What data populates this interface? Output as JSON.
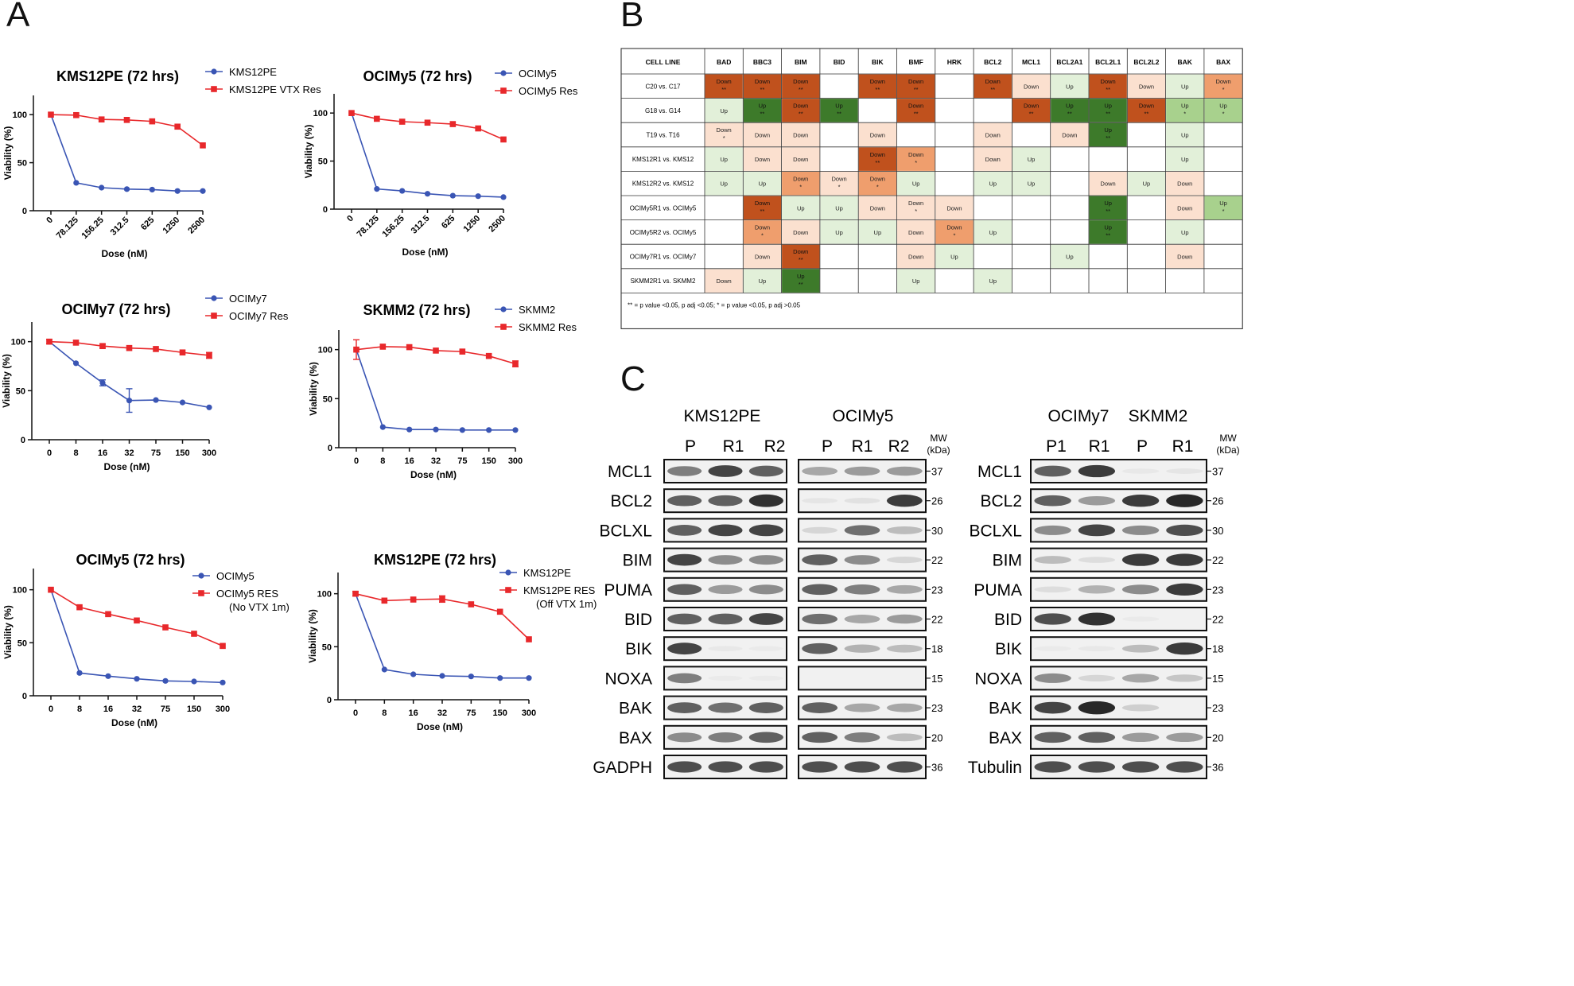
{
  "panels": {
    "a": "A",
    "b": "B",
    "c": "C"
  },
  "colors": {
    "sensitive": "#3a55b4",
    "resistant": "#e8282b",
    "dark_down": "#c0511d",
    "mid_down": "#ef9e6d",
    "light_down": "#fbe0cf",
    "dark_up": "#3d7a2a",
    "mid_up": "#a8d18d",
    "light_up": "#e2f0d9"
  },
  "chart_data": [
    {
      "type": "line",
      "title": "KMS12PE (72 hrs)",
      "xlabel": "Dose (nM)",
      "ylabel": "Viability (%)",
      "ylim": [
        0,
        120
      ],
      "yticks": [
        "0",
        "50",
        "100"
      ],
      "categories": [
        "0",
        "78.125",
        "156.25",
        "312.5",
        "625",
        "1250",
        "2500"
      ],
      "rotate_ticks": true,
      "series": [
        {
          "name": "KMS12PE",
          "values": [
            100,
            29,
            24,
            22.5,
            22,
            20.5,
            20.5
          ]
        },
        {
          "name": "KMS12PE VTX Res",
          "values": [
            100,
            99.5,
            95,
            94.5,
            93,
            87.5,
            68
          ]
        }
      ]
    },
    {
      "type": "line",
      "title": "OCIMy5 (72 hrs)",
      "xlabel": "Dose (nM)",
      "ylabel": "Viability (%)",
      "ylim": [
        0,
        120
      ],
      "yticks": [
        "0",
        "50",
        "100"
      ],
      "categories": [
        "0",
        "78.125",
        "156.25",
        "312.5",
        "625",
        "1250",
        "2500"
      ],
      "rotate_ticks": true,
      "series": [
        {
          "name": "OCIMy5",
          "values": [
            100,
            21,
            19,
            16,
            14,
            13.5,
            12.5
          ]
        },
        {
          "name": "OCIMy5 Res",
          "values": [
            100,
            94,
            91,
            90,
            88.5,
            84,
            72.5
          ]
        }
      ]
    },
    {
      "type": "line",
      "title": "OCIMy7 (72 hrs)",
      "xlabel": "Dose (nM)",
      "ylabel": "Viability (%)",
      "ylim": [
        0,
        120
      ],
      "yticks": [
        "0",
        "50",
        "100"
      ],
      "categories": [
        "0",
        "8",
        "16",
        "32",
        "75",
        "150",
        "300"
      ],
      "rotate_ticks": false,
      "series": [
        {
          "name": "OCIMy7",
          "values": [
            100,
            78,
            58,
            40,
            40.5,
            38,
            33
          ],
          "errors": [
            0,
            0,
            3,
            12,
            0,
            0,
            0
          ]
        },
        {
          "name": "OCIMy7 Res",
          "values": [
            100,
            99,
            95.5,
            93.5,
            92.5,
            89,
            86
          ],
          "errors": [
            2,
            0,
            2,
            0,
            0,
            0,
            3
          ]
        }
      ]
    },
    {
      "type": "line",
      "title": "SKMM2 (72 hrs)",
      "xlabel": "Dose (nM)",
      "ylabel": "Viability (%)",
      "ylim": [
        0,
        120
      ],
      "yticks": [
        "0",
        "50",
        "100"
      ],
      "categories": [
        "0",
        "8",
        "16",
        "32",
        "75",
        "150",
        "300"
      ],
      "rotate_ticks": false,
      "series": [
        {
          "name": "SKMM2",
          "values": [
            100,
            21,
            18.5,
            18.5,
            18,
            18,
            18
          ]
        },
        {
          "name": "SKMM2 Res",
          "values": [
            100,
            103,
            102.5,
            99,
            98,
            93.5,
            85.5
          ],
          "errors": [
            10,
            0,
            0,
            0,
            0,
            0,
            3
          ]
        }
      ]
    },
    {
      "type": "line",
      "title": "OCIMy5 (72 hrs)",
      "xlabel": "Dose (nM)",
      "ylabel": "Viability (%)",
      "ylim": [
        0,
        120
      ],
      "yticks": [
        "0",
        "50",
        "100"
      ],
      "categories": [
        "0",
        "8",
        "16",
        "32",
        "75",
        "150",
        "300"
      ],
      "rotate_ticks": false,
      "series": [
        {
          "name": "OCIMy5",
          "values": [
            100,
            21.5,
            18.5,
            16,
            14,
            13.5,
            12.5
          ]
        },
        {
          "name": "OCIMy5 RES",
          "name2": "(No VTX 1m)",
          "values": [
            100,
            83.5,
            77,
            71,
            64.5,
            58.5,
            47
          ]
        }
      ]
    },
    {
      "type": "line",
      "title": "KMS12PE (72 hrs)",
      "xlabel": "Dose (nM)",
      "ylabel": "Viability (%)",
      "ylim": [
        0,
        120
      ],
      "yticks": [
        "0",
        "50",
        "100"
      ],
      "categories": [
        "0",
        "8",
        "16",
        "32",
        "75",
        "150",
        "300"
      ],
      "rotate_ticks": false,
      "series": [
        {
          "name": "KMS12PE",
          "values": [
            100,
            28.5,
            24,
            22.5,
            22,
            20.5,
            20.5
          ]
        },
        {
          "name": "KMS12PE RES",
          "name2": "(Off VTX 1m)",
          "values": [
            100,
            93.5,
            94.5,
            95,
            90,
            83,
            57
          ],
          "errors": [
            2,
            0,
            0,
            3,
            0,
            0,
            0
          ]
        }
      ]
    }
  ],
  "table": {
    "columns": [
      "CELL LINE",
      "BAD",
      "BBC3",
      "BIM",
      "BID",
      "BIK",
      "BMF",
      "HRK",
      "BCL2",
      "MCL1",
      "BCL2A1",
      "BCL2L1",
      "BCL2L2",
      "BAK",
      "BAX"
    ],
    "rows": [
      {
        "label": "C20 vs. C17",
        "cells": [
          [
            "Down",
            "**",
            "dd"
          ],
          [
            "Down",
            "**",
            "dd"
          ],
          [
            "Down",
            "**",
            "dd"
          ],
          null,
          [
            "Down",
            "**",
            "dd"
          ],
          [
            "Down",
            "**",
            "dd"
          ],
          null,
          [
            "Down",
            "**",
            "dd"
          ],
          [
            "Down",
            "",
            "ld"
          ],
          [
            "Up",
            "",
            "lu"
          ],
          [
            "Down",
            "**",
            "dd"
          ],
          [
            "Down",
            "",
            "ld"
          ],
          [
            "Up",
            "",
            "lu"
          ],
          [
            "Down",
            "*",
            "md"
          ]
        ]
      },
      {
        "label": "G18 vs. G14",
        "cells": [
          [
            "Up",
            "",
            "lu"
          ],
          [
            "Up",
            "**",
            "du"
          ],
          [
            "Down",
            "**",
            "dd"
          ],
          [
            "Up",
            "**",
            "du"
          ],
          null,
          [
            "Down",
            "**",
            "dd"
          ],
          null,
          null,
          [
            "Down",
            "**",
            "dd"
          ],
          [
            "Up",
            "**",
            "du"
          ],
          [
            "Up",
            "**",
            "du"
          ],
          [
            "Down",
            "**",
            "dd"
          ],
          [
            "Up",
            "*",
            "mu"
          ],
          [
            "Up",
            "*",
            "mu"
          ]
        ]
      },
      {
        "label": "T19 vs. T16",
        "cells": [
          [
            "Down",
            "*",
            "ld"
          ],
          [
            "Down",
            "",
            "ld"
          ],
          [
            "Down",
            "",
            "ld"
          ],
          null,
          [
            "Down",
            "",
            "ld"
          ],
          null,
          null,
          [
            "Down",
            "",
            "ld"
          ],
          null,
          [
            "Down",
            "",
            "ld"
          ],
          [
            "Up",
            "**",
            "du"
          ],
          null,
          [
            "Up",
            "",
            "lu"
          ],
          null
        ]
      },
      {
        "label": "KMS12R1 vs. KMS12",
        "cells": [
          [
            "Up",
            "",
            "lu"
          ],
          [
            "Down",
            "",
            "ld"
          ],
          [
            "Down",
            "",
            "ld"
          ],
          null,
          [
            "Down",
            "**",
            "dd"
          ],
          [
            "Down",
            "*",
            "md"
          ],
          null,
          [
            "Down",
            "",
            "ld"
          ],
          [
            "Up",
            "",
            "lu"
          ],
          null,
          null,
          null,
          [
            "Up",
            "",
            "lu"
          ],
          null
        ]
      },
      {
        "label": "KMS12R2 vs. KMS12",
        "cells": [
          [
            "Up",
            "",
            "lu"
          ],
          [
            "Up",
            "",
            "lu"
          ],
          [
            "Down",
            "*",
            "md"
          ],
          [
            "Down",
            "*",
            "ld"
          ],
          [
            "Down",
            "*",
            "md"
          ],
          [
            "Up",
            "",
            "lu"
          ],
          null,
          [
            "Up",
            "",
            "lu"
          ],
          [
            "Up",
            "",
            "lu"
          ],
          null,
          [
            "Down",
            "",
            "ld"
          ],
          [
            "Up",
            "",
            "lu"
          ],
          [
            "Down",
            "",
            "ld"
          ],
          null
        ]
      },
      {
        "label": "OCIMy5R1 vs. OCIMy5",
        "cells": [
          null,
          [
            "Down",
            "**",
            "dd"
          ],
          [
            "Up",
            "",
            "lu"
          ],
          [
            "Up",
            "",
            "lu"
          ],
          [
            "Down",
            "",
            "ld"
          ],
          [
            "Down",
            "*",
            "ld"
          ],
          [
            "Down",
            "",
            "ld"
          ],
          null,
          null,
          null,
          [
            "Up",
            "**",
            "du"
          ],
          null,
          [
            "Down",
            "",
            "ld"
          ],
          [
            "Up",
            "*",
            "mu"
          ]
        ]
      },
      {
        "label": "OCIMy5R2 vs. OCIMy5",
        "cells": [
          null,
          [
            "Down",
            "*",
            "md"
          ],
          [
            "Down",
            "",
            "ld"
          ],
          [
            "Up",
            "",
            "lu"
          ],
          [
            "Up",
            "",
            "lu"
          ],
          [
            "Down",
            "",
            "ld"
          ],
          [
            "Down",
            "*",
            "md"
          ],
          [
            "Up",
            "",
            "lu"
          ],
          null,
          null,
          [
            "Up",
            "**",
            "du"
          ],
          null,
          [
            "Up",
            "",
            "lu"
          ],
          null
        ]
      },
      {
        "label": "OCIMy7R1 vs. OCIMy7",
        "cells": [
          null,
          [
            "Down",
            "",
            "ld"
          ],
          [
            "Down",
            "**",
            "dd"
          ],
          null,
          null,
          [
            "Down",
            "",
            "ld"
          ],
          [
            "Up",
            "",
            "lu"
          ],
          null,
          null,
          [
            "Up",
            "",
            "lu"
          ],
          null,
          null,
          [
            "Down",
            "",
            "ld"
          ],
          null
        ]
      },
      {
        "label": "SKMM2R1 vs. SKMM2",
        "cells": [
          [
            "Down",
            "",
            "ld"
          ],
          [
            "Up",
            "",
            "lu"
          ],
          [
            "Up",
            "**",
            "du"
          ],
          null,
          null,
          [
            "Up",
            "",
            "lu"
          ],
          null,
          [
            "Up",
            "",
            "lu"
          ],
          null,
          null,
          null,
          null,
          null,
          null
        ]
      }
    ],
    "footnote": "** = p value <0.05, p adj <0.05; * = p value <0.05, p adj >0.05"
  },
  "blot": {
    "left": {
      "cell_lines": [
        "KMS12PE",
        "OCIMy5"
      ],
      "lanes1": [
        "P",
        "R1",
        "R2"
      ],
      "lanes2": [
        "P",
        "R1",
        "R2"
      ],
      "mw_header": [
        "MW",
        "(kDa)"
      ],
      "proteins": [
        "MCL1",
        "BCL2",
        "BCLXL",
        "BIM",
        "PUMA",
        "BID",
        "BIK",
        "NOXA",
        "BAK",
        "BAX",
        "GADPH"
      ],
      "mw": [
        "37",
        "26",
        "30",
        "22",
        "23",
        "22",
        "18",
        "15",
        "23",
        "20",
        "36"
      ],
      "intensity1": [
        [
          0.6,
          0.8,
          0.7
        ],
        [
          0.7,
          0.7,
          0.9
        ],
        [
          0.7,
          0.8,
          0.8
        ],
        [
          0.8,
          0.55,
          0.55
        ],
        [
          0.7,
          0.5,
          0.55
        ],
        [
          0.7,
          0.7,
          0.8
        ],
        [
          0.8,
          0.05,
          0.03
        ],
        [
          0.6,
          0.03,
          0.02
        ],
        [
          0.7,
          0.65,
          0.7
        ],
        [
          0.55,
          0.6,
          0.7
        ],
        [
          0.75,
          0.75,
          0.75
        ]
      ],
      "intensity2": [
        [
          0.45,
          0.5,
          0.5
        ],
        [
          0.08,
          0.12,
          0.85
        ],
        [
          0.2,
          0.65,
          0.35
        ],
        [
          0.7,
          0.55,
          0.2
        ],
        [
          0.7,
          0.6,
          0.45
        ],
        [
          0.65,
          0.45,
          0.5
        ],
        [
          0.7,
          0.4,
          0.35
        ],
        [
          0.0,
          0.0,
          0.0
        ],
        [
          0.7,
          0.45,
          0.45
        ],
        [
          0.7,
          0.6,
          0.35
        ],
        [
          0.75,
          0.75,
          0.75
        ]
      ]
    },
    "right": {
      "cell_lines": [
        "OCIMy7",
        "SKMM2"
      ],
      "lanes": [
        "P1",
        "R1",
        "P",
        "R1"
      ],
      "mw_header": [
        "MW",
        "(kDa)"
      ],
      "proteins": [
        "MCL1",
        "BCL2",
        "BCLXL",
        "BIM",
        "PUMA",
        "BID",
        "BIK",
        "NOXA",
        "BAK",
        "BAX",
        "Tubulin"
      ],
      "mw": [
        "37",
        "26",
        "30",
        "22",
        "23",
        "22",
        "18",
        "15",
        "23",
        "20",
        "36"
      ],
      "intensity": [
        [
          0.7,
          0.85,
          0.05,
          0.08
        ],
        [
          0.7,
          0.5,
          0.85,
          0.95
        ],
        [
          0.55,
          0.8,
          0.55,
          0.75
        ],
        [
          0.35,
          0.15,
          0.85,
          0.85
        ],
        [
          0.15,
          0.4,
          0.55,
          0.85
        ],
        [
          0.75,
          0.9,
          0.03,
          0.0
        ],
        [
          0.03,
          0.05,
          0.35,
          0.85
        ],
        [
          0.55,
          0.2,
          0.45,
          0.3
        ],
        [
          0.8,
          0.95,
          0.25,
          0.0
        ],
        [
          0.7,
          0.7,
          0.5,
          0.5
        ],
        [
          0.75,
          0.75,
          0.75,
          0.75
        ]
      ]
    }
  }
}
